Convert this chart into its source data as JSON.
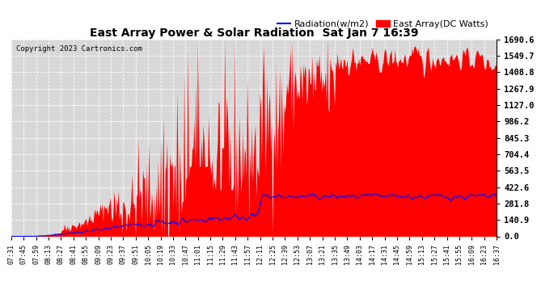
{
  "title": "East Array Power & Solar Radiation  Sat Jan 7 16:39",
  "copyright": "Copyright 2023 Cartronics.com",
  "legend_radiation": "Radiation(w/m2)",
  "legend_array": "East Array(DC Watts)",
  "ylabel_right_ticks": [
    0.0,
    140.9,
    281.8,
    422.6,
    563.5,
    704.4,
    845.3,
    986.2,
    1127.0,
    1267.9,
    1408.8,
    1549.7,
    1690.6
  ],
  "ymax": 1690.6,
  "ymin": 0.0,
  "background_color": "#ffffff",
  "plot_bg_color": "#d8d8d8",
  "grid_color": "#ffffff",
  "radiation_color": "#0000ff",
  "array_color": "#ff0000",
  "title_color": "#000000",
  "copyright_color": "#000000",
  "x_tick_labels": [
    "07:31",
    "07:45",
    "07:59",
    "08:13",
    "08:27",
    "08:41",
    "08:55",
    "09:09",
    "09:23",
    "09:37",
    "09:51",
    "10:05",
    "10:19",
    "10:33",
    "10:47",
    "11:01",
    "11:15",
    "11:29",
    "11:43",
    "11:57",
    "12:11",
    "12:25",
    "12:39",
    "12:53",
    "13:07",
    "13:21",
    "13:35",
    "13:49",
    "14:03",
    "14:17",
    "14:31",
    "14:45",
    "14:59",
    "15:13",
    "15:27",
    "15:41",
    "15:55",
    "16:09",
    "16:23",
    "16:37"
  ]
}
